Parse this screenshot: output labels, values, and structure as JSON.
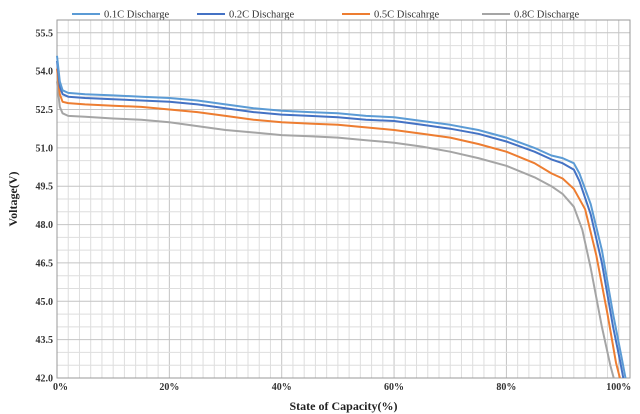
{
  "chart_data": {
    "type": "line",
    "title": "",
    "xlabel": "State of Capacity(%)",
    "ylabel": "Voltage(V)",
    "xlim": [
      0,
      102
    ],
    "ylim": [
      42.0,
      56.0
    ],
    "x_ticks": [
      0,
      20,
      40,
      60,
      80,
      100
    ],
    "x_tick_labels": [
      "0%",
      "20%",
      "40%",
      "60%",
      "80%",
      "100%"
    ],
    "y_ticks": [
      42.0,
      43.5,
      45.0,
      46.5,
      48.0,
      49.5,
      51.0,
      52.5,
      54.0,
      55.5
    ],
    "y_tick_labels": [
      "42.0",
      "43.5",
      "45.0",
      "46.5",
      "48.0",
      "49.5",
      "51.0",
      "52.5",
      "54.0",
      "55.5"
    ],
    "grid": true,
    "legend_position": "top",
    "series": [
      {
        "name": "0.1C Discharge",
        "color": "#5b9bd5",
        "points": [
          [
            0,
            54.6
          ],
          [
            0.5,
            53.6
          ],
          [
            1,
            53.25
          ],
          [
            2,
            53.15
          ],
          [
            5,
            53.1
          ],
          [
            10,
            53.05
          ],
          [
            15,
            53.0
          ],
          [
            20,
            52.95
          ],
          [
            25,
            52.85
          ],
          [
            30,
            52.7
          ],
          [
            35,
            52.55
          ],
          [
            40,
            52.45
          ],
          [
            45,
            52.4
          ],
          [
            50,
            52.35
          ],
          [
            55,
            52.25
          ],
          [
            60,
            52.2
          ],
          [
            65,
            52.05
          ],
          [
            70,
            51.9
          ],
          [
            75,
            51.7
          ],
          [
            80,
            51.4
          ],
          [
            85,
            51.0
          ],
          [
            88,
            50.7
          ],
          [
            90,
            50.6
          ],
          [
            92,
            50.4
          ],
          [
            93,
            50.0
          ],
          [
            95,
            48.8
          ],
          [
            97,
            47.0
          ],
          [
            99,
            44.5
          ],
          [
            100.5,
            42.8
          ],
          [
            101.2,
            42.0
          ]
        ]
      },
      {
        "name": "0.2C Discharge",
        "color": "#4472c4",
        "points": [
          [
            0,
            54.4
          ],
          [
            0.5,
            53.4
          ],
          [
            1,
            53.1
          ],
          [
            2,
            53.0
          ],
          [
            5,
            52.95
          ],
          [
            10,
            52.9
          ],
          [
            15,
            52.85
          ],
          [
            20,
            52.8
          ],
          [
            25,
            52.7
          ],
          [
            30,
            52.55
          ],
          [
            35,
            52.4
          ],
          [
            40,
            52.3
          ],
          [
            45,
            52.25
          ],
          [
            50,
            52.2
          ],
          [
            55,
            52.1
          ],
          [
            60,
            52.05
          ],
          [
            65,
            51.9
          ],
          [
            70,
            51.75
          ],
          [
            75,
            51.55
          ],
          [
            80,
            51.25
          ],
          [
            85,
            50.85
          ],
          [
            88,
            50.55
          ],
          [
            90,
            50.4
          ],
          [
            92,
            50.15
          ],
          [
            93,
            49.7
          ],
          [
            95,
            48.4
          ],
          [
            97,
            46.5
          ],
          [
            99,
            44.0
          ],
          [
            100.2,
            42.7
          ],
          [
            100.8,
            42.0
          ]
        ]
      },
      {
        "name": "0.5C Discahrge",
        "color": "#ed7d31",
        "points": [
          [
            0,
            54.1
          ],
          [
            0.5,
            53.1
          ],
          [
            1,
            52.8
          ],
          [
            2,
            52.75
          ],
          [
            5,
            52.7
          ],
          [
            10,
            52.65
          ],
          [
            15,
            52.6
          ],
          [
            20,
            52.5
          ],
          [
            25,
            52.4
          ],
          [
            30,
            52.25
          ],
          [
            35,
            52.1
          ],
          [
            40,
            52.0
          ],
          [
            45,
            51.95
          ],
          [
            50,
            51.9
          ],
          [
            55,
            51.8
          ],
          [
            60,
            51.7
          ],
          [
            65,
            51.55
          ],
          [
            70,
            51.4
          ],
          [
            75,
            51.15
          ],
          [
            80,
            50.85
          ],
          [
            85,
            50.4
          ],
          [
            88,
            50.0
          ],
          [
            90,
            49.8
          ],
          [
            92,
            49.4
          ],
          [
            94,
            48.6
          ],
          [
            96,
            46.8
          ],
          [
            98,
            44.5
          ],
          [
            99.5,
            42.6
          ],
          [
            100.2,
            42.0
          ]
        ]
      },
      {
        "name": "0.8C Discharge",
        "color": "#a5a5a5",
        "points": [
          [
            0,
            53.6
          ],
          [
            0.5,
            52.6
          ],
          [
            1,
            52.35
          ],
          [
            2,
            52.25
          ],
          [
            5,
            52.22
          ],
          [
            10,
            52.15
          ],
          [
            15,
            52.1
          ],
          [
            20,
            52.0
          ],
          [
            25,
            51.85
          ],
          [
            30,
            51.7
          ],
          [
            35,
            51.6
          ],
          [
            40,
            51.5
          ],
          [
            45,
            51.45
          ],
          [
            50,
            51.4
          ],
          [
            55,
            51.3
          ],
          [
            60,
            51.2
          ],
          [
            65,
            51.05
          ],
          [
            70,
            50.85
          ],
          [
            75,
            50.6
          ],
          [
            80,
            50.3
          ],
          [
            85,
            49.85
          ],
          [
            88,
            49.5
          ],
          [
            90,
            49.2
          ],
          [
            92,
            48.7
          ],
          [
            93.5,
            47.8
          ],
          [
            95,
            46.3
          ],
          [
            97,
            44.0
          ],
          [
            98.5,
            42.5
          ],
          [
            99.1,
            42.0
          ]
        ]
      }
    ]
  }
}
